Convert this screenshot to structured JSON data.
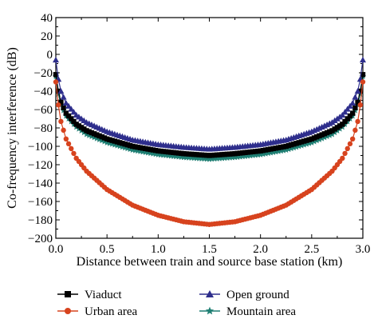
{
  "chart_data": {
    "type": "line",
    "xlabel": "Distance between train and source base station (km)",
    "ylabel": "Co-frequency interference (dB)",
    "xlim": [
      0.0,
      3.0
    ],
    "ylim": [
      -200,
      40
    ],
    "xticks": [
      0.0,
      0.5,
      1.0,
      1.5,
      2.0,
      2.5,
      3.0
    ],
    "xtick_labels": [
      "0.0",
      "0.5",
      "1.0",
      "1.5",
      "2.0",
      "2.5",
      "3.0"
    ],
    "yticks": [
      40,
      20,
      0,
      -20,
      -40,
      -60,
      -80,
      -100,
      -120,
      -140,
      -160,
      -180,
      -200
    ],
    "ytick_labels": [
      "40",
      "20",
      "0",
      "−20",
      "−40",
      "−60",
      "−80",
      "−100",
      "−120",
      "−140",
      "−160",
      "−180",
      "−200"
    ],
    "grid": false,
    "legend_position": "below plot",
    "point_spacing_km": 0.025,
    "series": [
      {
        "name": "Viaduct",
        "marker": "square",
        "color": "#000000",
        "points": [
          [
            0.0,
            -22
          ],
          [
            0.025,
            -40
          ],
          [
            0.05,
            -52
          ],
          [
            0.1,
            -64
          ],
          [
            0.2,
            -76
          ],
          [
            0.3,
            -83
          ],
          [
            0.5,
            -92
          ],
          [
            0.75,
            -100
          ],
          [
            1.0,
            -105
          ],
          [
            1.25,
            -108
          ],
          [
            1.5,
            -110
          ],
          [
            1.75,
            -108
          ],
          [
            2.0,
            -105
          ],
          [
            2.25,
            -100
          ],
          [
            2.5,
            -92
          ],
          [
            2.7,
            -83
          ],
          [
            2.8,
            -76
          ],
          [
            2.9,
            -64
          ],
          [
            2.95,
            -52
          ],
          [
            2.975,
            -40
          ],
          [
            3.0,
            -22
          ]
        ]
      },
      {
        "name": "Urban area",
        "marker": "circle",
        "color": "#d7431e",
        "points": [
          [
            0.0,
            -30
          ],
          [
            0.025,
            -55
          ],
          [
            0.05,
            -73
          ],
          [
            0.1,
            -92
          ],
          [
            0.2,
            -113
          ],
          [
            0.3,
            -127
          ],
          [
            0.5,
            -147
          ],
          [
            0.75,
            -164
          ],
          [
            1.0,
            -175
          ],
          [
            1.25,
            -182
          ],
          [
            1.5,
            -185
          ],
          [
            1.75,
            -182
          ],
          [
            2.0,
            -175
          ],
          [
            2.25,
            -164
          ],
          [
            2.5,
            -147
          ],
          [
            2.7,
            -127
          ],
          [
            2.8,
            -113
          ],
          [
            2.9,
            -92
          ],
          [
            2.95,
            -73
          ],
          [
            2.975,
            -55
          ],
          [
            3.0,
            -30
          ]
        ]
      },
      {
        "name": "Open ground",
        "marker": "triangle",
        "color": "#2e2e8c",
        "points": [
          [
            0.0,
            -6
          ],
          [
            0.025,
            -27
          ],
          [
            0.05,
            -40
          ],
          [
            0.1,
            -53
          ],
          [
            0.2,
            -66
          ],
          [
            0.3,
            -74
          ],
          [
            0.5,
            -84
          ],
          [
            0.75,
            -93
          ],
          [
            1.0,
            -98
          ],
          [
            1.25,
            -101
          ],
          [
            1.5,
            -103
          ],
          [
            1.75,
            -101
          ],
          [
            2.0,
            -98
          ],
          [
            2.25,
            -93
          ],
          [
            2.5,
            -84
          ],
          [
            2.7,
            -74
          ],
          [
            2.8,
            -66
          ],
          [
            2.9,
            -53
          ],
          [
            2.95,
            -40
          ],
          [
            2.975,
            -27
          ],
          [
            3.0,
            -6
          ]
        ]
      },
      {
        "name": "Mountain area",
        "marker": "star",
        "color": "#1f7f73",
        "points": [
          [
            0.0,
            -24
          ],
          [
            0.025,
            -43
          ],
          [
            0.05,
            -55
          ],
          [
            0.1,
            -67
          ],
          [
            0.2,
            -79
          ],
          [
            0.3,
            -87
          ],
          [
            0.5,
            -96
          ],
          [
            0.75,
            -104
          ],
          [
            1.0,
            -109
          ],
          [
            1.25,
            -112
          ],
          [
            1.5,
            -114
          ],
          [
            1.75,
            -112
          ],
          [
            2.0,
            -109
          ],
          [
            2.25,
            -104
          ],
          [
            2.5,
            -96
          ],
          [
            2.7,
            -87
          ],
          [
            2.8,
            -79
          ],
          [
            2.9,
            -67
          ],
          [
            2.95,
            -55
          ],
          [
            2.975,
            -43
          ],
          [
            3.0,
            -24
          ]
        ]
      }
    ]
  }
}
